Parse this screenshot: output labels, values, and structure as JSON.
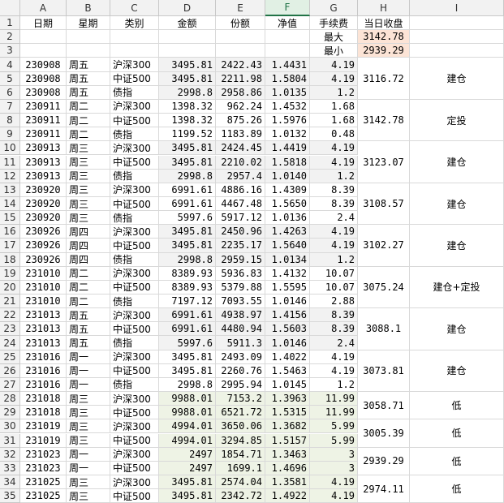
{
  "columns": [
    "A",
    "B",
    "C",
    "D",
    "E",
    "F",
    "G",
    "H",
    "I"
  ],
  "selected_column": "F",
  "header_row": {
    "A": "日期",
    "B": "星期",
    "C": "类别",
    "D": "金额",
    "E": "份额",
    "F": "净值",
    "G": "手续费",
    "H": "当日收盘"
  },
  "minmax": {
    "max_label": "最大",
    "max_value": "3142.78",
    "min_label": "最小",
    "min_value": "2939.29"
  },
  "colors": {
    "gray_fill": "#f2f2f2",
    "green_fill": "#eef3e5",
    "peach_fill": "#fce4d6"
  },
  "data_rows": [
    {
      "date": "230908",
      "day": "周五",
      "cat": "沪深300",
      "amt": "3495.81",
      "share": "2422.43",
      "nav": "1.4431",
      "fee": "4.19"
    },
    {
      "date": "230908",
      "day": "周五",
      "cat": "中证500",
      "amt": "3495.81",
      "share": "2211.98",
      "nav": "1.5804",
      "fee": "4.19"
    },
    {
      "date": "230908",
      "day": "周五",
      "cat": "债指",
      "amt": "2998.8",
      "share": "2958.86",
      "nav": "1.0135",
      "fee": "1.2"
    },
    {
      "date": "230911",
      "day": "周二",
      "cat": "沪深300",
      "amt": "1398.32",
      "share": "962.24",
      "nav": "1.4532",
      "fee": "1.68"
    },
    {
      "date": "230911",
      "day": "周二",
      "cat": "中证500",
      "amt": "1398.32",
      "share": "875.26",
      "nav": "1.5976",
      "fee": "1.68"
    },
    {
      "date": "230911",
      "day": "周二",
      "cat": "债指",
      "amt": "1199.52",
      "share": "1183.89",
      "nav": "1.0132",
      "fee": "0.48"
    },
    {
      "date": "230913",
      "day": "周三",
      "cat": "沪深300",
      "amt": "3495.81",
      "share": "2424.45",
      "nav": "1.4419",
      "fee": "4.19"
    },
    {
      "date": "230913",
      "day": "周三",
      "cat": "中证500",
      "amt": "3495.81",
      "share": "2210.02",
      "nav": "1.5818",
      "fee": "4.19"
    },
    {
      "date": "230913",
      "day": "周三",
      "cat": "债指",
      "amt": "2998.8",
      "share": "2957.4",
      "nav": "1.0140",
      "fee": "1.2"
    },
    {
      "date": "230920",
      "day": "周三",
      "cat": "沪深300",
      "amt": "6991.61",
      "share": "4886.16",
      "nav": "1.4309",
      "fee": "8.39"
    },
    {
      "date": "230920",
      "day": "周三",
      "cat": "中证500",
      "amt": "6991.61",
      "share": "4467.48",
      "nav": "1.5650",
      "fee": "8.39"
    },
    {
      "date": "230920",
      "day": "周三",
      "cat": "债指",
      "amt": "5997.6",
      "share": "5917.12",
      "nav": "1.0136",
      "fee": "2.4"
    },
    {
      "date": "230926",
      "day": "周四",
      "cat": "沪深300",
      "amt": "3495.81",
      "share": "2450.96",
      "nav": "1.4263",
      "fee": "4.19"
    },
    {
      "date": "230926",
      "day": "周四",
      "cat": "中证500",
      "amt": "3495.81",
      "share": "2235.17",
      "nav": "1.5640",
      "fee": "4.19"
    },
    {
      "date": "230926",
      "day": "周四",
      "cat": "债指",
      "amt": "2998.8",
      "share": "2959.15",
      "nav": "1.0134",
      "fee": "1.2"
    },
    {
      "date": "231010",
      "day": "周二",
      "cat": "沪深300",
      "amt": "8389.93",
      "share": "5936.83",
      "nav": "1.4132",
      "fee": "10.07"
    },
    {
      "date": "231010",
      "day": "周二",
      "cat": "中证500",
      "amt": "8389.93",
      "share": "5379.88",
      "nav": "1.5595",
      "fee": "10.07"
    },
    {
      "date": "231010",
      "day": "周二",
      "cat": "债指",
      "amt": "7197.12",
      "share": "7093.55",
      "nav": "1.0146",
      "fee": "2.88"
    },
    {
      "date": "231013",
      "day": "周五",
      "cat": "沪深300",
      "amt": "6991.61",
      "share": "4938.97",
      "nav": "1.4156",
      "fee": "8.39"
    },
    {
      "date": "231013",
      "day": "周五",
      "cat": "中证500",
      "amt": "6991.61",
      "share": "4480.94",
      "nav": "1.5603",
      "fee": "8.39"
    },
    {
      "date": "231013",
      "day": "周五",
      "cat": "债指",
      "amt": "5997.6",
      "share": "5911.3",
      "nav": "1.0146",
      "fee": "2.4"
    },
    {
      "date": "231016",
      "day": "周一",
      "cat": "沪深300",
      "amt": "3495.81",
      "share": "2493.09",
      "nav": "1.4022",
      "fee": "4.19"
    },
    {
      "date": "231016",
      "day": "周一",
      "cat": "中证500",
      "amt": "3495.81",
      "share": "2260.76",
      "nav": "1.5463",
      "fee": "4.19"
    },
    {
      "date": "231016",
      "day": "周一",
      "cat": "债指",
      "amt": "2998.8",
      "share": "2995.94",
      "nav": "1.0145",
      "fee": "1.2"
    },
    {
      "date": "231018",
      "day": "周三",
      "cat": "沪深300",
      "amt": "9988.01",
      "share": "7153.2",
      "nav": "1.3963",
      "fee": "11.99"
    },
    {
      "date": "231018",
      "day": "周三",
      "cat": "中证500",
      "amt": "9988.01",
      "share": "6521.72",
      "nav": "1.5315",
      "fee": "11.99"
    },
    {
      "date": "231019",
      "day": "周三",
      "cat": "沪深300",
      "amt": "4994.01",
      "share": "3650.06",
      "nav": "1.3682",
      "fee": "5.99"
    },
    {
      "date": "231019",
      "day": "周三",
      "cat": "中证500",
      "amt": "4994.01",
      "share": "3294.85",
      "nav": "1.5157",
      "fee": "5.99"
    },
    {
      "date": "231023",
      "day": "周一",
      "cat": "沪深300",
      "amt": "2497",
      "share": "1854.71",
      "nav": "1.3463",
      "fee": "3"
    },
    {
      "date": "231023",
      "day": "周一",
      "cat": "中证500",
      "amt": "2497",
      "share": "1699.1",
      "nav": "1.4696",
      "fee": "3"
    },
    {
      "date": "231025",
      "day": "周三",
      "cat": "沪深300",
      "amt": "3495.81",
      "share": "2574.04",
      "nav": "1.3581",
      "fee": "4.19"
    },
    {
      "date": "231025",
      "day": "周三",
      "cat": "中证500",
      "amt": "3495.81",
      "share": "2342.72",
      "nav": "1.4922",
      "fee": "4.19"
    }
  ],
  "groups": [
    {
      "close": "3116.72",
      "action": "建仓"
    },
    {
      "close": "3142.78",
      "action": "定投"
    },
    {
      "close": "3123.07",
      "action": "建仓"
    },
    {
      "close": "3108.57",
      "action": "建仓"
    },
    {
      "close": "3102.27",
      "action": "建仓"
    },
    {
      "close": "3075.24",
      "action": "建仓+定投"
    },
    {
      "close": "3088.1",
      "action": "建仓"
    },
    {
      "close": "3073.81",
      "action": "建仓"
    },
    {
      "close": "3058.71",
      "action": "低"
    },
    {
      "close": "3005.39",
      "action": "低"
    },
    {
      "close": "2939.29",
      "action": "低"
    },
    {
      "close": "2974.11",
      "action": "低"
    }
  ]
}
